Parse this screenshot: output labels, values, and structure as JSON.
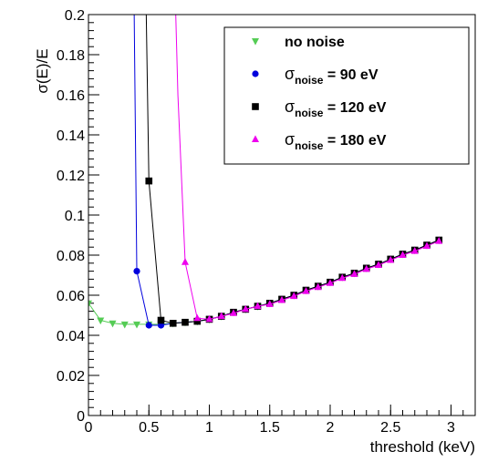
{
  "chart_data": {
    "type": "line",
    "title": "",
    "xlabel": "threshold (keV)",
    "ylabel": "σ(E)/E",
    "xlim": [
      0,
      3.2
    ],
    "ylim": [
      0,
      0.2
    ],
    "xticks": [
      {
        "v": 0,
        "label": "0"
      },
      {
        "v": 0.5,
        "label": "0.5"
      },
      {
        "v": 1,
        "label": "1"
      },
      {
        "v": 1.5,
        "label": "1.5"
      },
      {
        "v": 2,
        "label": "2"
      },
      {
        "v": 2.5,
        "label": "2.5"
      },
      {
        "v": 3,
        "label": "3"
      }
    ],
    "yticks": [
      {
        "v": 0,
        "label": "0"
      },
      {
        "v": 0.02,
        "label": "0.02"
      },
      {
        "v": 0.04,
        "label": "0.04"
      },
      {
        "v": 0.06,
        "label": "0.06"
      },
      {
        "v": 0.08,
        "label": "0.08"
      },
      {
        "v": 0.1,
        "label": "0.1"
      },
      {
        "v": 0.12,
        "label": "0.12"
      },
      {
        "v": 0.14,
        "label": "0.14"
      },
      {
        "v": 0.16,
        "label": "0.16"
      },
      {
        "v": 0.18,
        "label": "0.18"
      },
      {
        "v": 0.2,
        "label": "0.2"
      }
    ],
    "grid": false,
    "legend_position": "top-right",
    "series": [
      {
        "name": "no noise",
        "color": "#55cc55",
        "marker": "triangle-down",
        "x": [
          0,
          0.1,
          0.2,
          0.3,
          0.4,
          0.5,
          0.6,
          0.7,
          0.8,
          0.9,
          1.0,
          1.1,
          1.2,
          1.3,
          1.4,
          1.5,
          1.6,
          1.7,
          1.8,
          1.9,
          2.0,
          2.1,
          2.2,
          2.3,
          2.4,
          2.5,
          2.6,
          2.7,
          2.8,
          2.9
        ],
        "y": [
          0.056,
          0.0475,
          0.046,
          0.0455,
          0.0455,
          0.0455,
          0.0455,
          0.046,
          0.0465,
          0.047,
          0.048,
          0.0495,
          0.0515,
          0.053,
          0.0545,
          0.056,
          0.058,
          0.06,
          0.0625,
          0.0645,
          0.0665,
          0.069,
          0.071,
          0.0735,
          0.0755,
          0.078,
          0.0805,
          0.0825,
          0.085,
          0.0875
        ]
      },
      {
        "name_main": "σ",
        "name_sub": "noise",
        "name_rest": " = 90 eV",
        "color": "#0000dd",
        "marker": "circle",
        "x": [
          0.4,
          0.5,
          0.6,
          0.7,
          0.8,
          0.9,
          1.0,
          1.1,
          1.2,
          1.3,
          1.4,
          1.5,
          1.6,
          1.7,
          1.8,
          1.9,
          2.0,
          2.1,
          2.2,
          2.3,
          2.4,
          2.5,
          2.6,
          2.7,
          2.8,
          2.9
        ],
        "y": [
          0.072,
          0.045,
          0.045,
          0.046,
          0.0465,
          0.047,
          0.048,
          0.0495,
          0.0515,
          0.053,
          0.0545,
          0.056,
          0.058,
          0.06,
          0.0625,
          0.0645,
          0.0665,
          0.069,
          0.071,
          0.0735,
          0.0755,
          0.078,
          0.0805,
          0.0825,
          0.085,
          0.0875
        ]
      },
      {
        "name_main": "σ",
        "name_sub": "noise",
        "name_rest": " = 120 eV",
        "color": "#000000",
        "marker": "square",
        "x": [
          0.5,
          0.6,
          0.7,
          0.8,
          0.9,
          1.0,
          1.1,
          1.2,
          1.3,
          1.4,
          1.5,
          1.6,
          1.7,
          1.8,
          1.9,
          2.0,
          2.1,
          2.2,
          2.3,
          2.4,
          2.5,
          2.6,
          2.7,
          2.8,
          2.9
        ],
        "y": [
          0.117,
          0.0475,
          0.046,
          0.0465,
          0.047,
          0.048,
          0.0495,
          0.0515,
          0.053,
          0.0545,
          0.056,
          0.058,
          0.06,
          0.0625,
          0.0645,
          0.0665,
          0.069,
          0.071,
          0.0735,
          0.0755,
          0.078,
          0.0805,
          0.0825,
          0.085,
          0.0875
        ]
      },
      {
        "name_main": "σ",
        "name_sub": "noise",
        "name_rest": " = 180 eV",
        "color": "#ee00ee",
        "marker": "triangle-up",
        "x": [
          0.8,
          0.9,
          1.0,
          1.1,
          1.2,
          1.3,
          1.4,
          1.5,
          1.6,
          1.7,
          1.8,
          1.9,
          2.0,
          2.1,
          2.2,
          2.3,
          2.4,
          2.5,
          2.6,
          2.7,
          2.8,
          2.9
        ],
        "y": [
          0.0765,
          0.0485,
          0.048,
          0.0495,
          0.051,
          0.053,
          0.0545,
          0.0555,
          0.0575,
          0.0595,
          0.062,
          0.064,
          0.066,
          0.0685,
          0.0705,
          0.073,
          0.075,
          0.0775,
          0.08,
          0.082,
          0.0845,
          0.087
        ]
      }
    ]
  }
}
